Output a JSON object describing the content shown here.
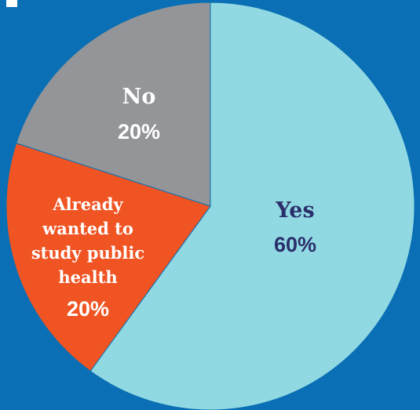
{
  "chart_data": {
    "type": "pie",
    "slices": [
      {
        "label": "Yes",
        "label_lines": [
          "Yes"
        ],
        "value": 60,
        "value_label": "60%",
        "color": "#90d9e2",
        "text_color": "#2a2f6b"
      },
      {
        "label": "Already wanted to study public health",
        "label_lines": [
          "Already",
          "wanted to",
          "study public",
          "health"
        ],
        "value": 20,
        "value_label": "20%",
        "color": "#f05423",
        "text_color": "#ffffff"
      },
      {
        "label": "No",
        "label_lines": [
          "No"
        ],
        "value": 20,
        "value_label": "20%",
        "color": "#939598",
        "text_color": "#ffffff"
      }
    ],
    "start": "top",
    "direction": "clockwise",
    "legend": "none"
  },
  "colors": {
    "background": "#0a6fb4",
    "border": "#0a6fb4"
  }
}
